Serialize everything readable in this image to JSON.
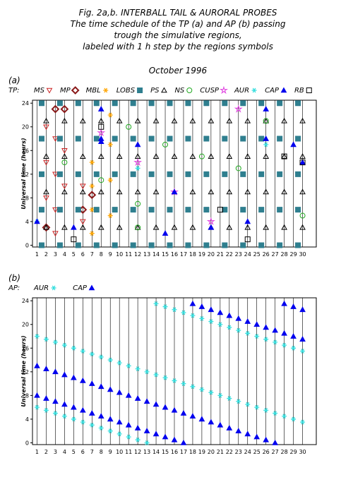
{
  "figure_title": [
    "Fig. 2a,b. INTERBALL TAIL & AURORAL PROBES",
    "The time schedule of the TP (a) and AP (b) passing",
    "trough the simulative regions,",
    "labeled with 1 h step by the regions symbols"
  ],
  "subtitle": "October 1996",
  "chart_data": [
    {
      "type": "scatter",
      "panel_label": "(a)",
      "legend_prefix": "TP:",
      "ylabel": "Universal time (hours)",
      "xlim": [
        0.5,
        31.5
      ],
      "ylim": [
        -0.3,
        24.5
      ],
      "xticks": [
        1,
        2,
        3,
        4,
        5,
        6,
        7,
        8,
        9,
        10,
        11,
        12,
        13,
        14,
        15,
        16,
        17,
        18,
        19,
        20,
        21,
        22,
        23,
        24,
        25,
        26,
        27,
        28,
        29,
        30
      ],
      "yticks": [
        0,
        4,
        8,
        12,
        16,
        20,
        24
      ],
      "grid": true,
      "series": [
        {
          "name": "MS",
          "marker": "triangle-down",
          "color": "#cc2222",
          "x": [
            2,
            2,
            2,
            3,
            3,
            3,
            3,
            4,
            4,
            6,
            6
          ],
          "y": [
            20,
            14,
            8,
            18,
            12,
            6,
            2,
            16,
            10,
            10,
            4
          ]
        },
        {
          "name": "MP",
          "marker": "diamond",
          "color": "#8b1a1a",
          "x": [
            2,
            3,
            4,
            6,
            7
          ],
          "y": [
            3,
            23,
            23,
            6,
            8.5
          ]
        },
        {
          "name": "MBL",
          "marker": "asterisk",
          "color": "#ffa500",
          "x": [
            7,
            7,
            7,
            7,
            9,
            9,
            9,
            9
          ],
          "y": [
            2,
            6,
            10,
            14,
            5,
            11,
            17,
            22
          ]
        },
        {
          "name": "LOBS",
          "marker": "square",
          "color": "#2f7f8f",
          "x": [
            1.5,
            3.5,
            5.5,
            7.5,
            9.5,
            11.5,
            13.5,
            15.5,
            17.5,
            19.5,
            21.5,
            23.5,
            25.5,
            27.5,
            29.5,
            1.5,
            3.5,
            5.5,
            7.5,
            9.5,
            11.5,
            13.5,
            15.5,
            17.5,
            19.5,
            21.5,
            23.5,
            25.5,
            27.5,
            29.5,
            1.5,
            3.5,
            5.5,
            7.5,
            9.5,
            11.5,
            13.5,
            15.5,
            17.5,
            19.5,
            21.5,
            23.5,
            25.5,
            27.5,
            29.5,
            1.5,
            3.5,
            5.5,
            7.5,
            9.5,
            11.5,
            13.5,
            15.5,
            17.5,
            19.5,
            21.5,
            23.5,
            25.5,
            27.5,
            29.5,
            1.5,
            3.5,
            5.5,
            7.5,
            9.5,
            11.5,
            13.5,
            15.5,
            17.5,
            19.5,
            21.5,
            23.5,
            25.5,
            27.5,
            29.5
          ],
          "y": [
            0,
            0,
            0,
            0,
            0,
            0,
            0,
            0,
            0,
            0,
            0,
            0,
            0,
            0,
            0,
            6,
            6,
            6,
            6,
            6,
            6,
            6,
            6,
            6,
            6,
            6,
            6,
            6,
            6,
            6,
            12,
            12,
            12,
            12,
            12,
            12,
            12,
            12,
            12,
            12,
            12,
            12,
            12,
            12,
            12,
            18,
            18,
            18,
            18,
            18,
            18,
            18,
            18,
            18,
            18,
            18,
            18,
            18,
            18,
            18,
            24,
            24,
            24,
            24,
            24,
            24,
            24,
            24,
            24,
            24,
            24,
            24,
            24,
            24,
            24
          ]
        },
        {
          "name": "PS",
          "marker": "triangle-up",
          "color": "#000000",
          "x": [
            2,
            4,
            6,
            8,
            10,
            12,
            14,
            16,
            18,
            20,
            22,
            24,
            26,
            28,
            30,
            2,
            4,
            6,
            8,
            10,
            12,
            14,
            16,
            18,
            20,
            22,
            24,
            26,
            28,
            30,
            2,
            4,
            6,
            8,
            10,
            12,
            14,
            16,
            18,
            20,
            22,
            24,
            26,
            28,
            30,
            2,
            4,
            6,
            8,
            10,
            12,
            14,
            16,
            18,
            20,
            22,
            24,
            26,
            28,
            30
          ],
          "y": [
            3,
            3,
            3,
            3,
            3,
            3,
            3,
            3,
            3,
            3,
            3,
            3,
            3,
            3,
            3,
            9,
            9,
            9,
            9,
            9,
            9,
            9,
            9,
            9,
            9,
            9,
            9,
            9,
            9,
            9,
            15,
            15,
            15,
            15,
            15,
            15,
            15,
            15,
            15,
            15,
            15,
            15,
            15,
            15,
            15,
            21,
            21,
            21,
            21,
            21,
            21,
            21,
            21,
            21,
            21,
            21,
            21,
            21,
            21,
            21
          ]
        },
        {
          "name": "NS",
          "marker": "circle",
          "color": "#22aa22",
          "x": [
            4,
            8,
            11,
            12,
            12,
            15,
            19,
            23,
            26,
            30
          ],
          "y": [
            14,
            11,
            20,
            7,
            3,
            17,
            15,
            13,
            21,
            5
          ]
        },
        {
          "name": "CUSP",
          "marker": "star",
          "color": "#e040e0",
          "x": [
            8,
            12,
            16,
            20,
            23
          ],
          "y": [
            19,
            14,
            9,
            4,
            23
          ]
        },
        {
          "name": "AUR",
          "marker": "asterisk",
          "color": "#33dddd",
          "x": [
            1,
            12,
            26
          ],
          "y": [
            4,
            13,
            17
          ]
        },
        {
          "name": "CAP",
          "marker": "triangle-filled",
          "color": "#0000ee",
          "x": [
            1,
            5,
            8,
            8,
            8,
            12,
            15,
            16,
            20,
            24,
            26,
            26,
            29,
            30
          ],
          "y": [
            4,
            3,
            23,
            18,
            17.5,
            17,
            2,
            9,
            3,
            4,
            23,
            18,
            17,
            14
          ]
        },
        {
          "name": "RB",
          "marker": "square-open",
          "color": "#000000",
          "x": [
            5,
            8,
            21,
            24,
            28,
            30
          ],
          "y": [
            1,
            20,
            6,
            1,
            15,
            14
          ]
        }
      ]
    },
    {
      "type": "scatter",
      "panel_label": "(b)",
      "legend_prefix": "AP:",
      "ylabel": "Universal time (hours)",
      "xlim": [
        0.5,
        31.5
      ],
      "ylim": [
        -0.3,
        24.5
      ],
      "xticks": [
        1,
        2,
        3,
        4,
        5,
        6,
        7,
        8,
        9,
        10,
        11,
        12,
        13,
        14,
        15,
        16,
        17,
        18,
        19,
        20,
        21,
        22,
        23,
        24,
        25,
        26,
        27,
        28,
        29,
        30
      ],
      "yticks": [
        0,
        4,
        8,
        12,
        16,
        20,
        24
      ],
      "grid": true,
      "series": [
        {
          "name": "AUR",
          "marker": "asterisk",
          "color": "#33dddd",
          "x": [
            1,
            2,
            3,
            4,
            5,
            6,
            7,
            8,
            9,
            10,
            11,
            12,
            13,
            14,
            15,
            16,
            17,
            18,
            19,
            20,
            21,
            22,
            23,
            24,
            25,
            26,
            27,
            28,
            29,
            30,
            1,
            2,
            3,
            4,
            5,
            6,
            7,
            8,
            9,
            10,
            11,
            12,
            13,
            14,
            15,
            16,
            17,
            18,
            19,
            20,
            21,
            22,
            23,
            24,
            25,
            26,
            27,
            28,
            29,
            30
          ],
          "y": [
            18,
            17.5,
            17,
            16.5,
            16,
            15.5,
            15,
            14.5,
            14,
            13.5,
            13,
            12.5,
            12,
            11.5,
            11,
            10.5,
            10,
            9.5,
            9,
            8.5,
            8,
            7.5,
            7,
            6.5,
            6,
            5.5,
            5,
            4.5,
            4,
            3.5,
            6,
            5.5,
            5,
            4.5,
            4,
            3.5,
            3,
            2.5,
            2,
            1.5,
            1,
            0.5,
            0,
            23.5,
            23,
            22.5,
            22,
            21.5,
            21,
            20.5,
            20,
            19.5,
            19,
            18.5,
            18,
            17.5,
            17,
            16.5,
            16,
            15.5
          ]
        },
        {
          "name": "CAP",
          "marker": "triangle-filled",
          "color": "#0000ee",
          "x": [
            1,
            2,
            3,
            4,
            5,
            6,
            7,
            8,
            9,
            10,
            11,
            12,
            13,
            14,
            15,
            16,
            17,
            18,
            19,
            20,
            21,
            22,
            23,
            24,
            25,
            26,
            27,
            28,
            29,
            30,
            1,
            2,
            3,
            4,
            5,
            6,
            7,
            8,
            9,
            10,
            11,
            12,
            13,
            14,
            15,
            16,
            17,
            18,
            19,
            20,
            21,
            22,
            23,
            24,
            25,
            26,
            27,
            28,
            29,
            30
          ],
          "y": [
            8,
            7.5,
            7,
            6.5,
            6,
            5.5,
            5,
            4.5,
            4,
            3.5,
            3,
            2.5,
            2,
            1.5,
            1,
            0.5,
            0,
            23.5,
            23,
            22.5,
            22,
            21.5,
            21,
            20.5,
            20,
            19.5,
            19,
            18.5,
            18,
            17.5,
            13,
            12.5,
            12,
            11.5,
            11,
            10.5,
            10,
            9.5,
            9,
            8.5,
            8,
            7.5,
            7,
            6.5,
            6,
            5.5,
            5,
            4.5,
            4,
            3.5,
            3,
            2.5,
            2,
            1.5,
            1,
            0.5,
            0,
            23.5,
            23,
            22.5
          ]
        }
      ]
    }
  ]
}
